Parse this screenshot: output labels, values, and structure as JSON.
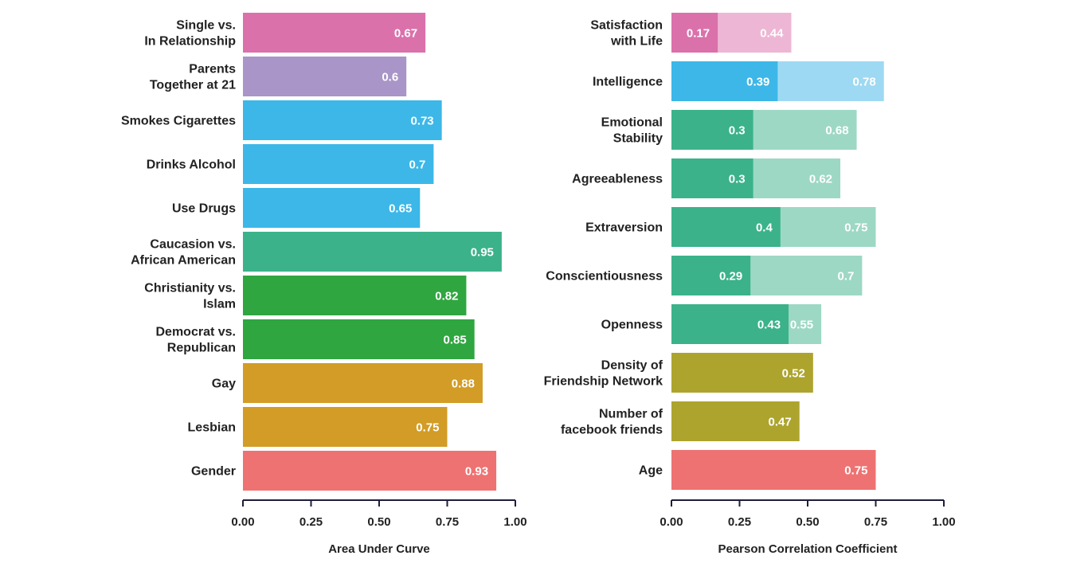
{
  "chart_data": [
    {
      "type": "bar",
      "orientation": "horizontal",
      "xlabel": "Area Under Curve",
      "xlim": [
        0,
        1
      ],
      "ticks": [
        "0.00",
        "0.25",
        "0.50",
        "0.75",
        "1.00"
      ],
      "tick_values": [
        0,
        0.25,
        0.5,
        0.75,
        1.0
      ],
      "grid": false,
      "categories": [
        {
          "label": [
            "Single vs.",
            "In Relationship"
          ],
          "value": 0.67,
          "value_label": "0.67",
          "color": "#DB71AB"
        },
        {
          "label": [
            "Parents",
            "Together at 21"
          ],
          "value": 0.6,
          "value_label": "0.6",
          "color": "#A995C7"
        },
        {
          "label": [
            "Smokes Cigarettes"
          ],
          "value": 0.73,
          "value_label": "0.73",
          "color": "#3CB7E8"
        },
        {
          "label": [
            "Drinks Alcohol"
          ],
          "value": 0.7,
          "value_label": "0.7",
          "color": "#3CB7E8"
        },
        {
          "label": [
            "Use Drugs"
          ],
          "value": 0.65,
          "value_label": "0.65",
          "color": "#3CB7E8"
        },
        {
          "label": [
            "Caucasion vs.",
            "African American"
          ],
          "value": 0.95,
          "value_label": "0.95",
          "color": "#3BB28A"
        },
        {
          "label": [
            "Christianity vs.",
            "Islam"
          ],
          "value": 0.82,
          "value_label": "0.82",
          "color": "#2FA640"
        },
        {
          "label": [
            "Democrat vs.",
            "Republican"
          ],
          "value": 0.85,
          "value_label": "0.85",
          "color": "#2FA640"
        },
        {
          "label": [
            "Gay"
          ],
          "value": 0.88,
          "value_label": "0.88",
          "color": "#D29C26"
        },
        {
          "label": [
            "Lesbian"
          ],
          "value": 0.75,
          "value_label": "0.75",
          "color": "#D29C26"
        },
        {
          "label": [
            "Gender"
          ],
          "value": 0.93,
          "value_label": "0.93",
          "color": "#EE7272"
        }
      ]
    },
    {
      "type": "bar",
      "orientation": "horizontal",
      "stacked": true,
      "xlabel": "Pearson Correlation Coefficient",
      "xlim": [
        0,
        1
      ],
      "ticks": [
        "0.00",
        "0.25",
        "0.50",
        "0.75",
        "1.00"
      ],
      "tick_values": [
        0,
        0.25,
        0.5,
        0.75,
        1.0
      ],
      "grid": false,
      "categories": [
        {
          "label": [
            "Satisfaction",
            "with Life"
          ],
          "segments": [
            {
              "value": 0.17,
              "value_label": "0.17",
              "color": "#DB71AB"
            },
            {
              "value": 0.44,
              "value_label": "0.44",
              "color": "#EDB6D4"
            }
          ]
        },
        {
          "label": [
            "Intelligence"
          ],
          "segments": [
            {
              "value": 0.39,
              "value_label": "0.39",
              "color": "#3CB7E8"
            },
            {
              "value": 0.78,
              "value_label": "0.78",
              "color": "#9ED9F3"
            }
          ]
        },
        {
          "label": [
            "Emotional",
            "Stability"
          ],
          "segments": [
            {
              "value": 0.3,
              "value_label": "0.3",
              "color": "#3BB28A"
            },
            {
              "value": 0.68,
              "value_label": "0.68",
              "color": "#9DD8C4"
            }
          ]
        },
        {
          "label": [
            "Agreeableness"
          ],
          "segments": [
            {
              "value": 0.3,
              "value_label": "0.3",
              "color": "#3BB28A"
            },
            {
              "value": 0.62,
              "value_label": "0.62",
              "color": "#9DD8C4"
            }
          ]
        },
        {
          "label": [
            "Extraversion"
          ],
          "segments": [
            {
              "value": 0.4,
              "value_label": "0.4",
              "color": "#3BB28A"
            },
            {
              "value": 0.75,
              "value_label": "0.75",
              "color": "#9DD8C4"
            }
          ]
        },
        {
          "label": [
            "Conscientiousness"
          ],
          "segments": [
            {
              "value": 0.29,
              "value_label": "0.29",
              "color": "#3BB28A"
            },
            {
              "value": 0.7,
              "value_label": "0.7",
              "color": "#9DD8C4"
            }
          ]
        },
        {
          "label": [
            "Openness"
          ],
          "segments": [
            {
              "value": 0.43,
              "value_label": "0.43",
              "color": "#3BB28A"
            },
            {
              "value": 0.55,
              "value_label": "0.55",
              "color": "#9DD8C4"
            }
          ]
        },
        {
          "label": [
            "Density of",
            "Friendship Network"
          ],
          "segments": [
            {
              "value": 0.52,
              "value_label": "0.52",
              "color": "#ADA42E"
            }
          ]
        },
        {
          "label": [
            "Number of",
            "facebook friends"
          ],
          "segments": [
            {
              "value": 0.47,
              "value_label": "0.47",
              "color": "#ADA42E"
            }
          ]
        },
        {
          "label": [
            "Age"
          ],
          "segments": [
            {
              "value": 0.75,
              "value_label": "0.75",
              "color": "#EE7272"
            }
          ]
        }
      ]
    }
  ]
}
